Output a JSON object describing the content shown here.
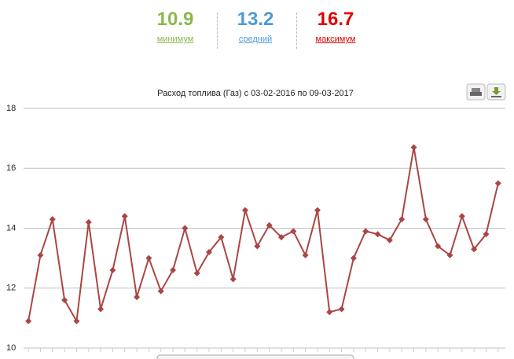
{
  "summary": [
    {
      "value": 10.9,
      "label": "минимум",
      "color": "#8cb84f"
    },
    {
      "value": 13.2,
      "label": "средний",
      "color": "#4f9bd8"
    },
    {
      "value": 16.7,
      "label": "максимум",
      "color": "#e00000"
    }
  ],
  "chart_data": {
    "type": "line",
    "title": "Расход топлива (Газ) с 03-02-2016 по 09-03-2017",
    "categories": [
      null,
      null,
      null,
      null,
      null,
      null,
      null,
      null,
      null,
      null,
      null,
      null,
      null,
      null,
      null,
      null,
      null,
      null,
      null,
      null,
      null,
      null,
      null,
      null,
      null,
      null,
      null,
      null,
      null,
      null,
      null,
      null,
      null,
      null,
      null,
      null,
      null,
      null,
      null,
      null
    ],
    "series": [
      {
        "color": "#aa4643",
        "values": [
          10.9,
          13.1,
          14.3,
          11.6,
          10.9,
          14.2,
          11.3,
          12.6,
          14.4,
          11.7,
          13.0,
          11.9,
          12.6,
          14.0,
          12.5,
          13.2,
          13.7,
          12.3,
          14.6,
          13.4,
          14.1,
          13.7,
          13.9,
          13.1,
          14.6,
          11.2,
          11.3,
          13.0,
          13.9,
          13.8,
          13.6,
          14.3,
          16.7,
          14.3,
          13.4,
          13.1,
          14.4,
          13.3,
          13.8,
          15.5
        ]
      }
    ],
    "ylim": [
      10,
      18
    ],
    "yticks": [
      10,
      12,
      14,
      16,
      18
    ],
    "grid": true
  }
}
